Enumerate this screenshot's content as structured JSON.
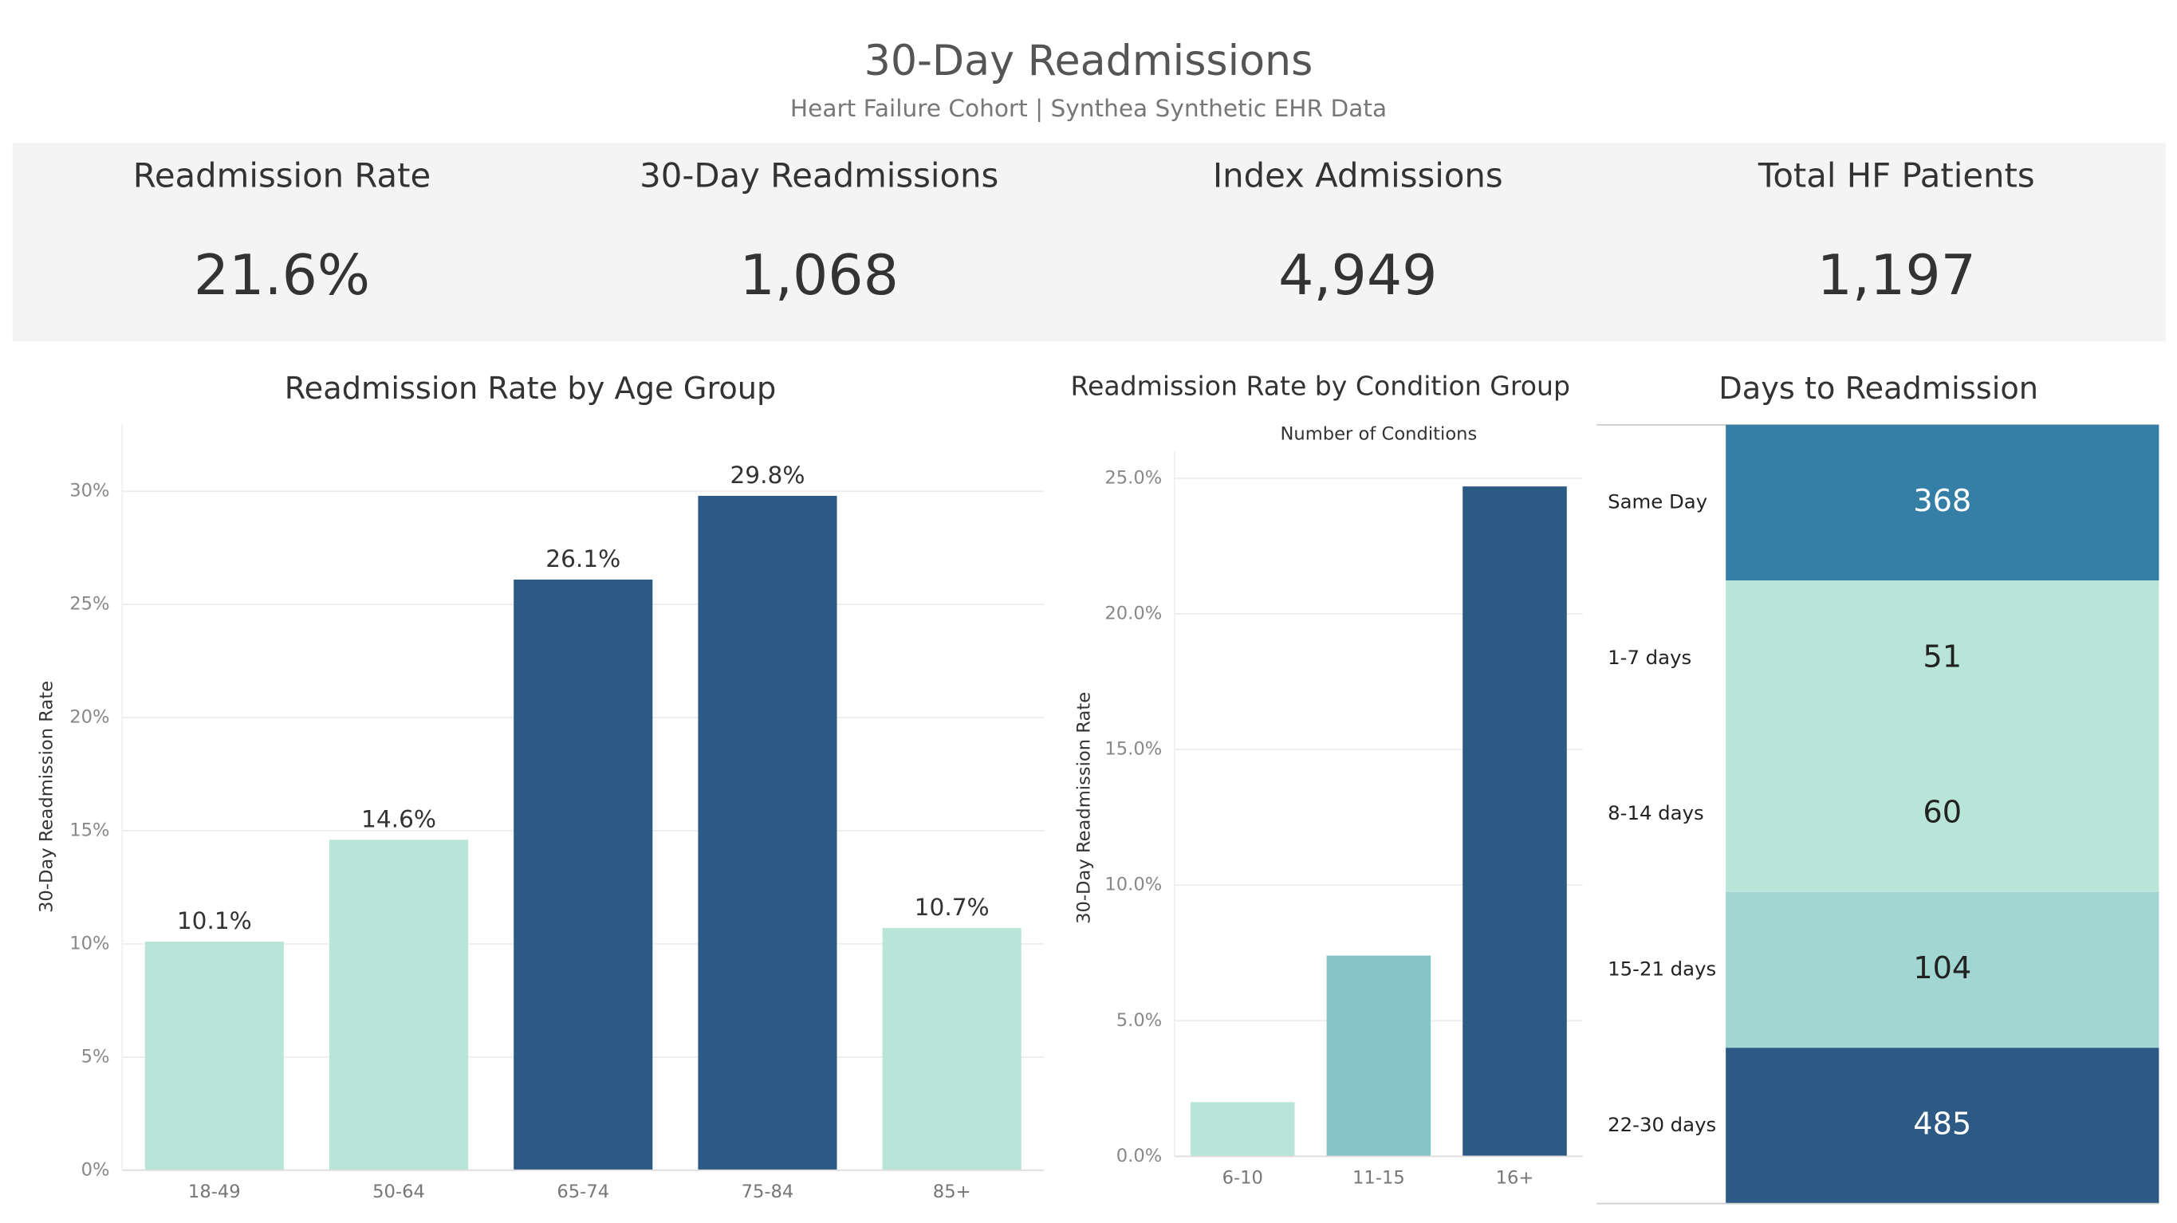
{
  "header": {
    "title": "30-Day Readmissions",
    "subtitle": "Heart Failure Cohort | Synthea Synthetic EHR Data"
  },
  "kpis": [
    {
      "label": "Readmission Rate",
      "value": "21.6%"
    },
    {
      "label": "30-Day Readmissions",
      "value": "1,068"
    },
    {
      "label": "Index Admissions",
      "value": "4,949"
    },
    {
      "label": "Total HF Patients",
      "value": "1,197"
    }
  ],
  "chart_data": [
    {
      "type": "bar",
      "title": "Readmission Rate by Age Group",
      "y_label": "30-Day Readmission Rate",
      "categories": [
        "18-49",
        "50-64",
        "65-74",
        "75-84",
        "85+"
      ],
      "values": [
        10.1,
        14.6,
        26.1,
        29.8,
        10.7
      ],
      "value_labels": [
        "10.1%",
        "14.6%",
        "26.1%",
        "29.8%",
        "10.7%"
      ],
      "colors": [
        "#b9e4d8",
        "#b9e4d8",
        "#2d5a85",
        "#2d5a85",
        "#b9e4d8"
      ],
      "ylim": [
        0,
        33
      ],
      "yticks": [
        {
          "value": 0,
          "label": "0%"
        },
        {
          "value": 5,
          "label": "5%"
        },
        {
          "value": 10,
          "label": "10%"
        },
        {
          "value": 15,
          "label": "15%"
        },
        {
          "value": 20,
          "label": "20%"
        },
        {
          "value": 25,
          "label": "25%"
        },
        {
          "value": 30,
          "label": "30%"
        }
      ],
      "grid": true
    },
    {
      "type": "bar",
      "title": "Readmission Rate by Condition Group",
      "x_label": "Number of Conditions",
      "y_label": "30-Day Readmission Rate",
      "categories": [
        "6-10",
        "11-15",
        "16+"
      ],
      "values": [
        2.0,
        7.4,
        24.7
      ],
      "colors": [
        "#b9e4d8",
        "#85c4c9",
        "#2d5a85"
      ],
      "ylim": [
        0,
        26
      ],
      "yticks": [
        {
          "value": 0,
          "label": "0.0%"
        },
        {
          "value": 5,
          "label": "5.0%"
        },
        {
          "value": 10,
          "label": "10.0%"
        },
        {
          "value": 15,
          "label": "15.0%"
        },
        {
          "value": 20,
          "label": "20.0%"
        },
        {
          "value": 25,
          "label": "25.0%"
        }
      ],
      "grid": true
    },
    {
      "type": "heatmap",
      "title": "Days to Readmission",
      "categories": [
        "Same Day",
        "1-7 days",
        "8-14 days",
        "15-21 days",
        "22-30 days"
      ],
      "values": [
        368,
        51,
        60,
        104,
        485
      ],
      "colors": [
        "#357ea5",
        "#b9e4d8",
        "#b9e4d8",
        "#a1d6d3",
        "#2d5a85"
      ]
    }
  ]
}
